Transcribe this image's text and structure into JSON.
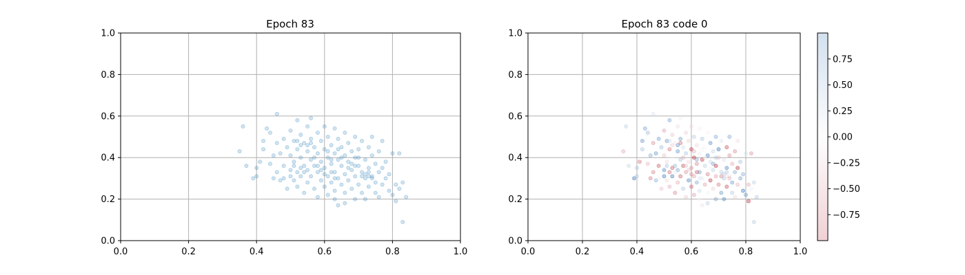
{
  "chart_data": [
    {
      "type": "scatter",
      "title": "Epoch 83",
      "xlabel": "",
      "ylabel": "",
      "xlim": [
        0.0,
        1.0
      ],
      "ylim": [
        0.0,
        1.0
      ],
      "xticks": [
        "0.0",
        "0.2",
        "0.4",
        "0.6",
        "0.8",
        "1.0"
      ],
      "yticks": [
        "0.0",
        "0.2",
        "0.4",
        "0.6",
        "0.8",
        "1.0"
      ],
      "grid": true,
      "marker_color": "#1f77b4",
      "marker_alpha": 0.2,
      "points": [
        [
          0.36,
          0.55
        ],
        [
          0.35,
          0.43
        ],
        [
          0.37,
          0.36
        ],
        [
          0.39,
          0.3
        ],
        [
          0.4,
          0.35
        ],
        [
          0.4,
          0.31
        ],
        [
          0.41,
          0.38
        ],
        [
          0.42,
          0.48
        ],
        [
          0.42,
          0.44
        ],
        [
          0.43,
          0.54
        ],
        [
          0.44,
          0.52
        ],
        [
          0.44,
          0.37
        ],
        [
          0.45,
          0.41
        ],
        [
          0.45,
          0.3
        ],
        [
          0.46,
          0.61
        ],
        [
          0.46,
          0.47
        ],
        [
          0.46,
          0.33
        ],
        [
          0.47,
          0.29
        ],
        [
          0.47,
          0.42
        ],
        [
          0.48,
          0.49
        ],
        [
          0.48,
          0.36
        ],
        [
          0.48,
          0.3
        ],
        [
          0.49,
          0.45
        ],
        [
          0.49,
          0.25
        ],
        [
          0.5,
          0.53
        ],
        [
          0.5,
          0.41
        ],
        [
          0.5,
          0.34
        ],
        [
          0.51,
          0.48
        ],
        [
          0.51,
          0.38
        ],
        [
          0.51,
          0.29
        ],
        [
          0.52,
          0.58
        ],
        [
          0.52,
          0.44
        ],
        [
          0.52,
          0.33
        ],
        [
          0.52,
          0.26
        ],
        [
          0.53,
          0.51
        ],
        [
          0.53,
          0.4
        ],
        [
          0.53,
          0.31
        ],
        [
          0.54,
          0.47
        ],
        [
          0.54,
          0.36
        ],
        [
          0.54,
          0.23
        ],
        [
          0.55,
          0.55
        ],
        [
          0.55,
          0.43
        ],
        [
          0.55,
          0.34
        ],
        [
          0.55,
          0.28
        ],
        [
          0.56,
          0.59
        ],
        [
          0.56,
          0.49
        ],
        [
          0.56,
          0.39
        ],
        [
          0.56,
          0.31
        ],
        [
          0.57,
          0.45
        ],
        [
          0.57,
          0.36
        ],
        [
          0.57,
          0.25
        ],
        [
          0.58,
          0.52
        ],
        [
          0.58,
          0.42
        ],
        [
          0.58,
          0.33
        ],
        [
          0.58,
          0.21
        ],
        [
          0.59,
          0.48
        ],
        [
          0.59,
          0.38
        ],
        [
          0.59,
          0.29
        ],
        [
          0.6,
          0.55
        ],
        [
          0.6,
          0.44
        ],
        [
          0.6,
          0.35
        ],
        [
          0.6,
          0.26
        ],
        [
          0.61,
          0.5
        ],
        [
          0.61,
          0.4
        ],
        [
          0.61,
          0.31
        ],
        [
          0.61,
          0.22
        ],
        [
          0.62,
          0.46
        ],
        [
          0.62,
          0.37
        ],
        [
          0.62,
          0.28
        ],
        [
          0.63,
          0.54
        ],
        [
          0.63,
          0.42
        ],
        [
          0.63,
          0.33
        ],
        [
          0.63,
          0.24
        ],
        [
          0.64,
          0.49
        ],
        [
          0.64,
          0.39
        ],
        [
          0.64,
          0.3
        ],
        [
          0.64,
          0.17
        ],
        [
          0.65,
          0.45
        ],
        [
          0.65,
          0.36
        ],
        [
          0.65,
          0.27
        ],
        [
          0.66,
          0.52
        ],
        [
          0.66,
          0.41
        ],
        [
          0.66,
          0.32
        ],
        [
          0.66,
          0.23
        ],
        [
          0.67,
          0.47
        ],
        [
          0.67,
          0.38
        ],
        [
          0.67,
          0.29
        ],
        [
          0.68,
          0.43
        ],
        [
          0.68,
          0.34
        ],
        [
          0.68,
          0.25
        ],
        [
          0.69,
          0.5
        ],
        [
          0.69,
          0.4
        ],
        [
          0.69,
          0.31
        ],
        [
          0.69,
          0.2
        ],
        [
          0.7,
          0.44
        ],
        [
          0.7,
          0.36
        ],
        [
          0.7,
          0.27
        ],
        [
          0.71,
          0.48
        ],
        [
          0.71,
          0.33
        ],
        [
          0.71,
          0.23
        ],
        [
          0.72,
          0.39
        ],
        [
          0.72,
          0.3
        ],
        [
          0.73,
          0.45
        ],
        [
          0.73,
          0.35
        ],
        [
          0.73,
          0.26
        ],
        [
          0.74,
          0.41
        ],
        [
          0.74,
          0.31
        ],
        [
          0.74,
          0.5
        ],
        [
          0.75,
          0.37
        ],
        [
          0.75,
          0.28
        ],
        [
          0.76,
          0.43
        ],
        [
          0.76,
          0.33
        ],
        [
          0.76,
          0.21
        ],
        [
          0.77,
          0.48
        ],
        [
          0.77,
          0.35
        ],
        [
          0.77,
          0.27
        ],
        [
          0.78,
          0.38
        ],
        [
          0.78,
          0.3
        ],
        [
          0.79,
          0.32
        ],
        [
          0.79,
          0.24
        ],
        [
          0.8,
          0.42
        ],
        [
          0.8,
          0.22
        ],
        [
          0.81,
          0.27
        ],
        [
          0.81,
          0.19
        ],
        [
          0.82,
          0.42
        ],
        [
          0.82,
          0.25
        ],
        [
          0.83,
          0.28
        ],
        [
          0.84,
          0.21
        ],
        [
          0.83,
          0.09
        ],
        [
          0.63,
          0.2
        ],
        [
          0.66,
          0.18
        ],
        [
          0.72,
          0.2
        ],
        [
          0.75,
          0.23
        ],
        [
          0.62,
          0.33
        ],
        [
          0.63,
          0.3
        ],
        [
          0.71,
          0.31
        ],
        [
          0.72,
          0.32
        ],
        [
          0.73,
          0.31
        ],
        [
          0.74,
          0.3
        ],
        [
          0.73,
          0.33
        ],
        [
          0.58,
          0.36
        ],
        [
          0.59,
          0.34
        ],
        [
          0.6,
          0.32
        ],
        [
          0.57,
          0.4
        ],
        [
          0.53,
          0.35
        ],
        [
          0.54,
          0.33
        ],
        [
          0.5,
          0.31
        ],
        [
          0.51,
          0.36
        ],
        [
          0.67,
          0.35
        ],
        [
          0.68,
          0.37
        ],
        [
          0.62,
          0.39
        ],
        [
          0.61,
          0.43
        ],
        [
          0.64,
          0.44
        ],
        [
          0.65,
          0.4
        ],
        [
          0.56,
          0.47
        ],
        [
          0.55,
          0.46
        ],
        [
          0.7,
          0.4
        ],
        [
          0.69,
          0.36
        ],
        [
          0.52,
          0.48
        ],
        [
          0.53,
          0.46
        ]
      ]
    },
    {
      "type": "scatter",
      "title": "Epoch 83 code 0",
      "xlabel": "",
      "ylabel": "",
      "xlim": [
        0.0,
        1.0
      ],
      "ylim": [
        0.0,
        1.0
      ],
      "xticks": [
        "0.0",
        "0.2",
        "0.4",
        "0.6",
        "0.8",
        "1.0"
      ],
      "yticks": [
        "0.0",
        "0.2",
        "0.4",
        "0.6",
        "0.8",
        "1.0"
      ],
      "grid": true,
      "colormap": "RdBu",
      "marker_alpha": 0.2,
      "colorbar": {
        "range": [
          -1.0,
          1.0
        ],
        "ticks": [
          "0.75",
          "0.50",
          "0.25",
          "0.00",
          "−0.25",
          "−0.50",
          "−0.75"
        ],
        "tick_values": [
          0.75,
          0.5,
          0.25,
          0.0,
          -0.25,
          -0.5,
          -0.75
        ],
        "color_low": "#b2182b",
        "color_mid": "#f7f7f7",
        "color_high": "#2166ac"
      }
    }
  ]
}
